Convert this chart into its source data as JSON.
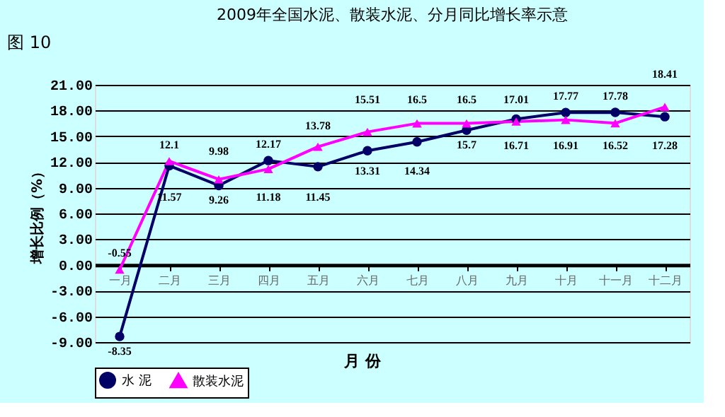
{
  "chart_data": {
    "type": "line",
    "title": "2009年全国水泥、散装水泥、分月同比增长率示意",
    "ylabel": "增长比例（%）",
    "xlabel": "月 份",
    "annotations": [
      "图 10"
    ],
    "categories": [
      "一月",
      "二月",
      "三月",
      "四月",
      "五月",
      "六月",
      "七月",
      "八月",
      "九月",
      "十月",
      "十一月",
      "十二月"
    ],
    "series": [
      {
        "name": "水 泥",
        "color": "#000066",
        "marker": "circle",
        "values": [
          -8.35,
          11.57,
          9.26,
          12.17,
          11.45,
          13.31,
          14.34,
          15.7,
          17.01,
          17.77,
          17.78,
          17.28
        ]
      },
      {
        "name": "散装水泥",
        "color": "#ff00ff",
        "marker": "triangle",
        "values": [
          -0.55,
          12.1,
          9.98,
          11.18,
          13.78,
          15.51,
          16.5,
          16.5,
          16.71,
          16.91,
          16.52,
          18.41
        ]
      }
    ],
    "data_labels": true,
    "ylim": [
      -9,
      21
    ],
    "yticks": [
      {
        "value": -9,
        "label": "-9.00"
      },
      {
        "value": -6,
        "label": "-6.00"
      },
      {
        "value": -3,
        "label": "-3.00"
      },
      {
        "value": 0,
        "label": "0.00"
      },
      {
        "value": 3,
        "label": "3.00"
      },
      {
        "value": 6,
        "label": "6.00"
      },
      {
        "value": 9,
        "label": "9.00"
      },
      {
        "value": 12,
        "label": "12.00"
      },
      {
        "value": 15,
        "label": "15.00"
      },
      {
        "value": 18,
        "label": "18.00"
      },
      {
        "value": 21,
        "label": "21.00"
      }
    ],
    "grid": "y",
    "legend": "bottom"
  }
}
